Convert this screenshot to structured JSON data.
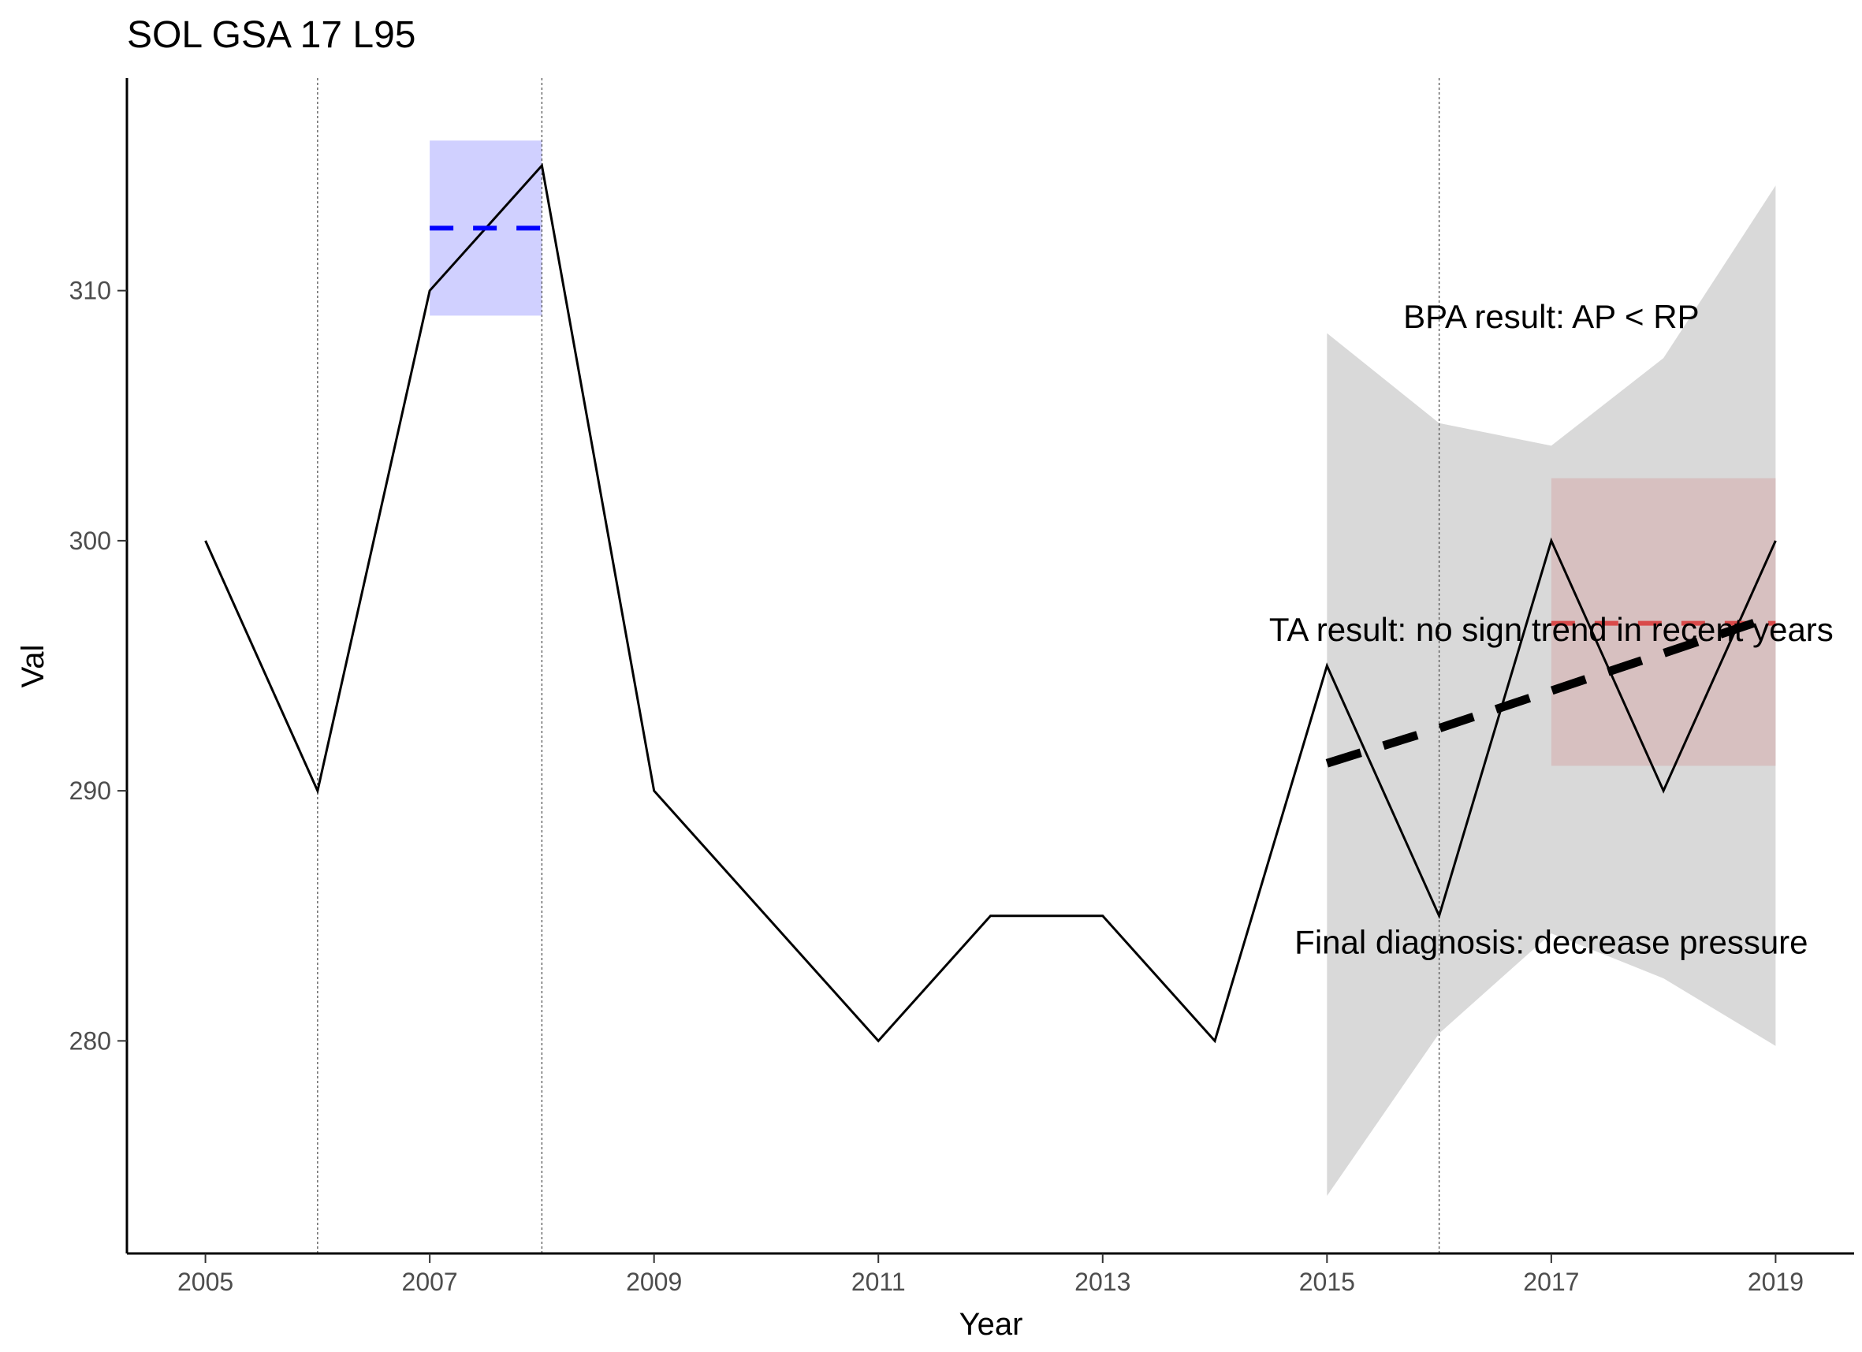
{
  "chart_data": {
    "type": "line",
    "title": "SOL GSA 17 L95",
    "xlabel": "Year",
    "ylabel": "Val",
    "xlim": [
      2004.3,
      2019.7
    ],
    "ylim": [
      271.5,
      318.5
    ],
    "x_ticks": [
      2005,
      2007,
      2009,
      2011,
      2013,
      2015,
      2017,
      2019
    ],
    "y_ticks": [
      280,
      290,
      300,
      310
    ],
    "grid": false,
    "x": [
      2005,
      2006,
      2007,
      2008,
      2009,
      2010,
      2011,
      2012,
      2013,
      2014,
      2015,
      2016,
      2017,
      2018,
      2019
    ],
    "values": [
      300,
      290,
      310,
      315,
      290,
      285,
      280,
      285,
      285,
      280,
      295,
      285,
      300,
      290,
      300
    ],
    "vlines": [
      2006,
      2008,
      2016
    ],
    "reference_period": {
      "x_range": [
        2007,
        2008
      ],
      "band": [
        309,
        316
      ],
      "mean": 312.5,
      "color": "#0000ff",
      "fill": "#d0d0ff"
    },
    "assessment_period": {
      "x_range": [
        2017,
        2019
      ],
      "band": [
        291,
        302.5
      ],
      "mean": 296.7,
      "color": "#d94a4a",
      "fill": "#d6bcbc"
    },
    "trend": {
      "x": [
        2015,
        2016,
        2017,
        2018,
        2019
      ],
      "fit": [
        291.1,
        292.5,
        294,
        295.5,
        297
      ],
      "lower": [
        273.8,
        280.3,
        284.3,
        282.5,
        279.8
      ],
      "upper": [
        308.3,
        304.7,
        303.8,
        307.3,
        314.2
      ],
      "band_fill": "#d9d9d9",
      "line_color": "#000000"
    },
    "annotations": [
      {
        "text": "BPA result: AP < RP",
        "x": 2017,
        "y": 308.5
      },
      {
        "text": "TA result: no sign trend in recent years",
        "x": 2017,
        "y": 296
      },
      {
        "text": "Final diagnosis: decrease pressure",
        "x": 2017,
        "y": 283.5
      }
    ]
  }
}
